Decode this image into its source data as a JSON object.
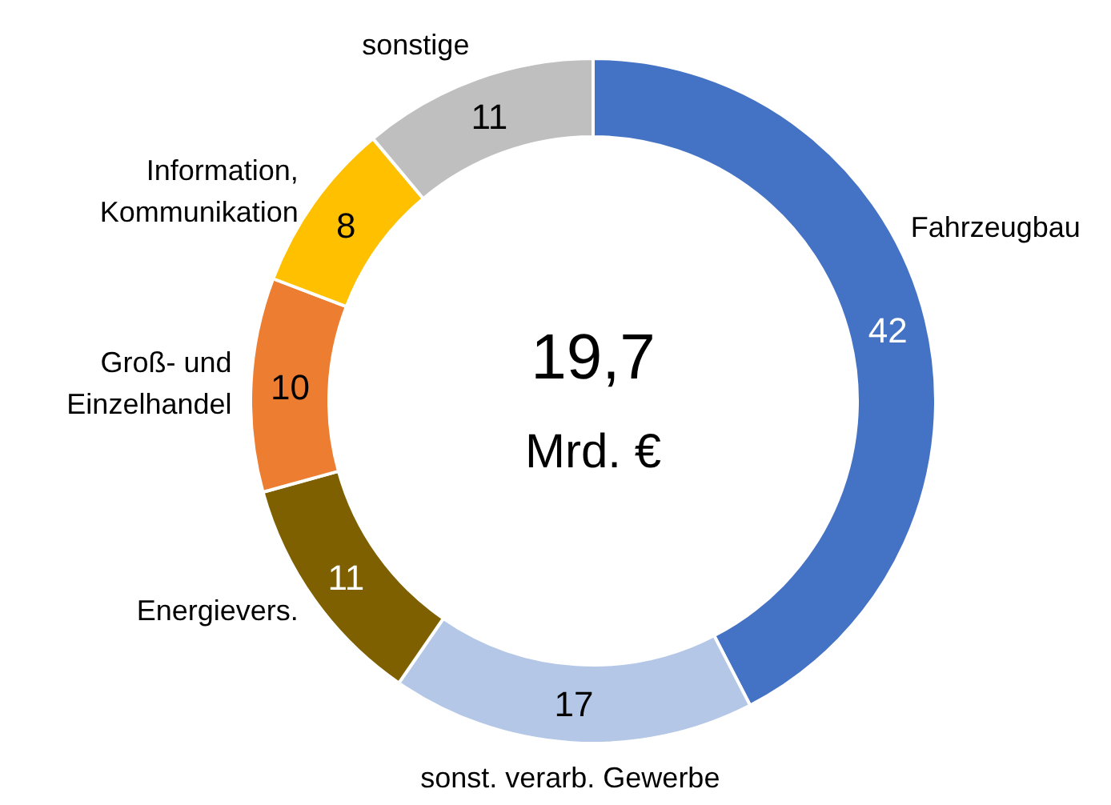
{
  "chart_data": {
    "type": "donut",
    "categories": [
      "Fahrzeugbau",
      "sonst. verarb. Gewerbe",
      "Energievers.",
      "Groß- und Einzelhandel",
      "Information, Kommunikation",
      "sonstige"
    ],
    "values": [
      42,
      17,
      11,
      10,
      8,
      11
    ],
    "colors": [
      "#4472c4",
      "#b4c7e7",
      "#7f6000",
      "#ed7d31",
      "#ffc000",
      "#bfbfbf"
    ],
    "data_labels": true,
    "annotations": [
      "19,7",
      "Mrd. €"
    ]
  }
}
